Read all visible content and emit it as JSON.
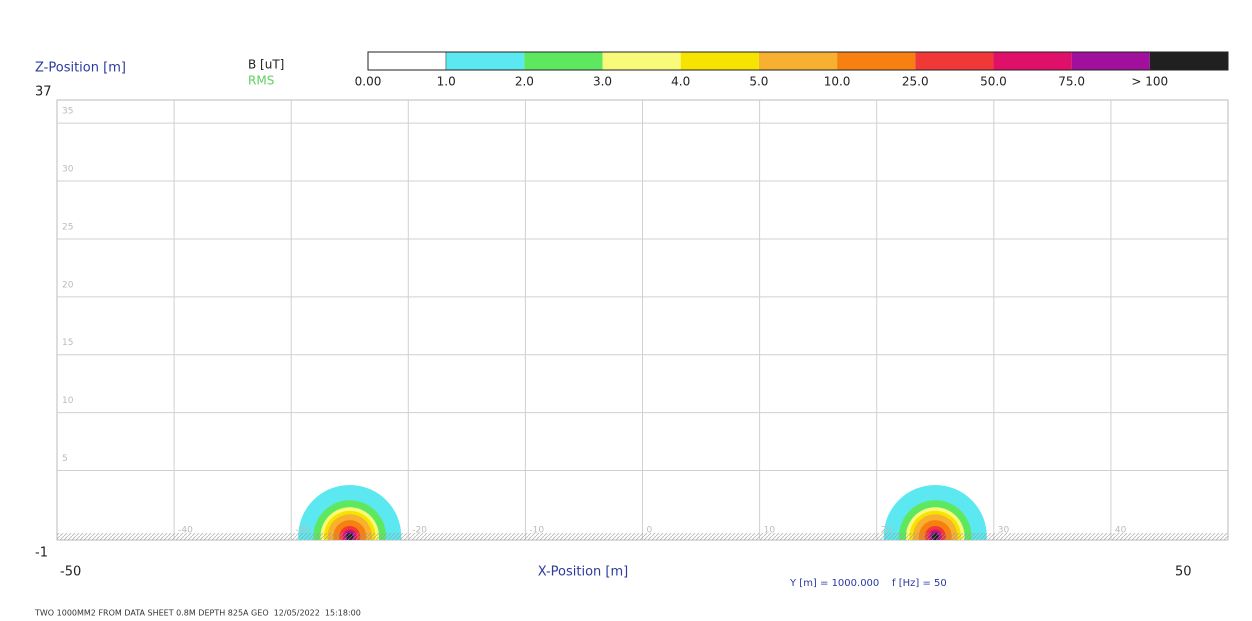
{
  "chart_data": {
    "type": "contour",
    "y_label": "Z-Position [m]",
    "x_label": "X-Position [m]",
    "unit_label": "B [uT]",
    "rms_label": "RMS",
    "ymax_label": "37",
    "ymin_label": "-1",
    "xmin_label": "-50",
    "xmax_label": "50",
    "params_label": "Y [m] = 1000.000    f [Hz] = 50",
    "footer": "TWO 1000MM2 FROM DATA SHEET 0.8M DEPTH 825A GEO  12/05/2022  15:18:00",
    "xlim": [
      -50,
      50
    ],
    "ylim": [
      -1,
      37
    ],
    "xticks": [
      -40,
      -30,
      -20,
      -10,
      0,
      10,
      20,
      30,
      40
    ],
    "yticks": [
      5,
      10,
      15,
      20,
      25,
      30,
      35
    ],
    "grid": true,
    "levels": [
      {
        "value": 0,
        "label": "0.00"
      },
      {
        "value": 1,
        "label": "1.0"
      },
      {
        "value": 2,
        "label": "2.0"
      },
      {
        "value": 3,
        "label": "3.0"
      },
      {
        "value": 4,
        "label": "4.0"
      },
      {
        "value": 5,
        "label": "5.0"
      },
      {
        "value": 10,
        "label": "10.0"
      },
      {
        "value": 25,
        "label": "25.0"
      },
      {
        "value": 50,
        "label": "50.0"
      },
      {
        "value": 75,
        "label": "75.0"
      },
      {
        "value": 100,
        "label": "> 100"
      }
    ],
    "colors": [
      "#ffffff",
      "#5ce8f0",
      "#5ee860",
      "#fafa7a",
      "#f6e400",
      "#f8b030",
      "#f88010",
      "#f03838",
      "#e0106a",
      "#a0109c",
      "#202020"
    ],
    "sources_x": [
      -25,
      25
    ],
    "source_z": -0.7,
    "level_radii": [
      4.4,
      3.1,
      2.5,
      2.2,
      1.9,
      1.4,
      0.9,
      0.6,
      0.45,
      0.3
    ]
  }
}
